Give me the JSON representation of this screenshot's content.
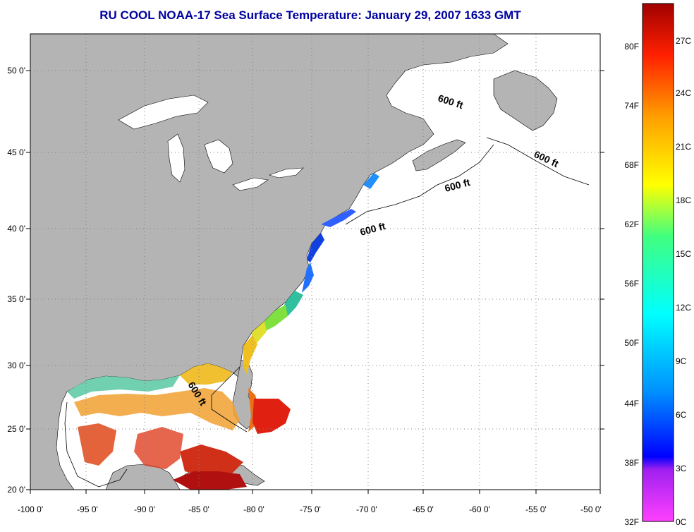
{
  "title": "RU COOL  NOAA-17  Sea Surface Temperature:  January 29, 2007 1633 GMT",
  "map": {
    "lon_labels": [
      "-100 0'",
      "-95 0'",
      "-90 0'",
      "-85 0'",
      "-80 0'",
      "-75 0'",
      "-70 0'",
      "-65 0'",
      "-60 0'",
      "-55 0'",
      "-50 0'"
    ],
    "lat_labels": [
      "50 0'",
      "45 0'",
      "40 0'",
      "35 0'",
      "30 0'",
      "25 0'",
      "20 0'"
    ],
    "bathymetry_labels": [
      "600 ft",
      "600 ft",
      "600 ft",
      "600 ft",
      "600 ft"
    ],
    "colors": {
      "land": "#b4b4b4",
      "ocean_nodata": "#ffffff",
      "border": "#000000"
    }
  },
  "colorbar": {
    "f_labels": [
      "80F",
      "74F",
      "68F",
      "62F",
      "56F",
      "50F",
      "44F",
      "38F",
      "32F"
    ],
    "c_labels": [
      "27C",
      "24C",
      "21C",
      "18C",
      "15C",
      "12C",
      "9C",
      "6C",
      "3C",
      "0C"
    ]
  }
}
